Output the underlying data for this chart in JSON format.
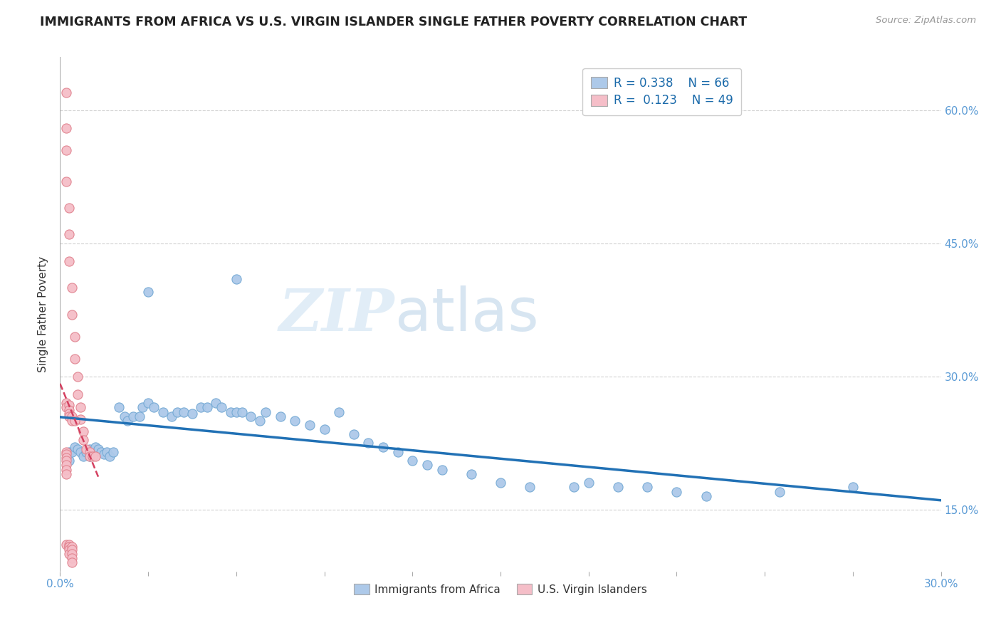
{
  "title": "IMMIGRANTS FROM AFRICA VS U.S. VIRGIN ISLANDER SINGLE FATHER POVERTY CORRELATION CHART",
  "source": "Source: ZipAtlas.com",
  "ylabel": "Single Father Poverty",
  "right_yticks": [
    0.15,
    0.3,
    0.45,
    0.6
  ],
  "right_yticklabels": [
    "15.0%",
    "30.0%",
    "45.0%",
    "60.0%"
  ],
  "xlim": [
    0.0,
    0.3
  ],
  "ylim": [
    0.08,
    0.66
  ],
  "legend_r1": "R = 0.338",
  "legend_n1": "N = 66",
  "legend_r2": "R =  0.123",
  "legend_n2": "N = 49",
  "series1_color": "#adc9e9",
  "series1_edge": "#74a9d4",
  "series2_color": "#f5bec8",
  "series2_edge": "#e0828e",
  "trendline1_color": "#2171b5",
  "trendline2_color": "#d44060",
  "watermark_zip": "ZIP",
  "watermark_atlas": "atlas",
  "blue_scatter_x": [
    0.003,
    0.003,
    0.004,
    0.005,
    0.006,
    0.007,
    0.008,
    0.009,
    0.01,
    0.01,
    0.011,
    0.012,
    0.013,
    0.014,
    0.015,
    0.016,
    0.017,
    0.018,
    0.02,
    0.022,
    0.023,
    0.025,
    0.027,
    0.028,
    0.03,
    0.032,
    0.035,
    0.038,
    0.04,
    0.042,
    0.045,
    0.048,
    0.05,
    0.053,
    0.055,
    0.058,
    0.06,
    0.062,
    0.065,
    0.068,
    0.07,
    0.075,
    0.08,
    0.085,
    0.09,
    0.095,
    0.1,
    0.105,
    0.11,
    0.115,
    0.12,
    0.125,
    0.13,
    0.14,
    0.15,
    0.16,
    0.175,
    0.18,
    0.19,
    0.2,
    0.21,
    0.22,
    0.245,
    0.27,
    0.03,
    0.06
  ],
  "blue_scatter_y": [
    0.215,
    0.205,
    0.215,
    0.22,
    0.218,
    0.215,
    0.21,
    0.215,
    0.218,
    0.21,
    0.215,
    0.22,
    0.218,
    0.215,
    0.212,
    0.215,
    0.21,
    0.215,
    0.265,
    0.255,
    0.25,
    0.255,
    0.255,
    0.265,
    0.27,
    0.265,
    0.26,
    0.255,
    0.26,
    0.26,
    0.258,
    0.265,
    0.265,
    0.27,
    0.265,
    0.26,
    0.26,
    0.26,
    0.255,
    0.25,
    0.26,
    0.255,
    0.25,
    0.245,
    0.24,
    0.26,
    0.235,
    0.225,
    0.22,
    0.215,
    0.205,
    0.2,
    0.195,
    0.19,
    0.18,
    0.175,
    0.175,
    0.18,
    0.175,
    0.175,
    0.17,
    0.165,
    0.17,
    0.175,
    0.395,
    0.41
  ],
  "pink_scatter_x": [
    0.002,
    0.002,
    0.002,
    0.002,
    0.003,
    0.003,
    0.003,
    0.004,
    0.004,
    0.005,
    0.005,
    0.006,
    0.006,
    0.007,
    0.007,
    0.008,
    0.008,
    0.009,
    0.01,
    0.01,
    0.011,
    0.012,
    0.002,
    0.002,
    0.003,
    0.003,
    0.003,
    0.003,
    0.004,
    0.004,
    0.005,
    0.002,
    0.002,
    0.002,
    0.002,
    0.002,
    0.002,
    0.002,
    0.002,
    0.003,
    0.003,
    0.003,
    0.003,
    0.003,
    0.004,
    0.004,
    0.004,
    0.004,
    0.004
  ],
  "pink_scatter_y": [
    0.62,
    0.58,
    0.555,
    0.52,
    0.49,
    0.46,
    0.43,
    0.4,
    0.37,
    0.345,
    0.32,
    0.3,
    0.28,
    0.265,
    0.252,
    0.238,
    0.228,
    0.218,
    0.215,
    0.21,
    0.21,
    0.21,
    0.27,
    0.265,
    0.268,
    0.262,
    0.258,
    0.255,
    0.255,
    0.25,
    0.25,
    0.215,
    0.212,
    0.208,
    0.205,
    0.2,
    0.195,
    0.19,
    0.11,
    0.11,
    0.108,
    0.108,
    0.105,
    0.1,
    0.108,
    0.105,
    0.1,
    0.095,
    0.09
  ]
}
